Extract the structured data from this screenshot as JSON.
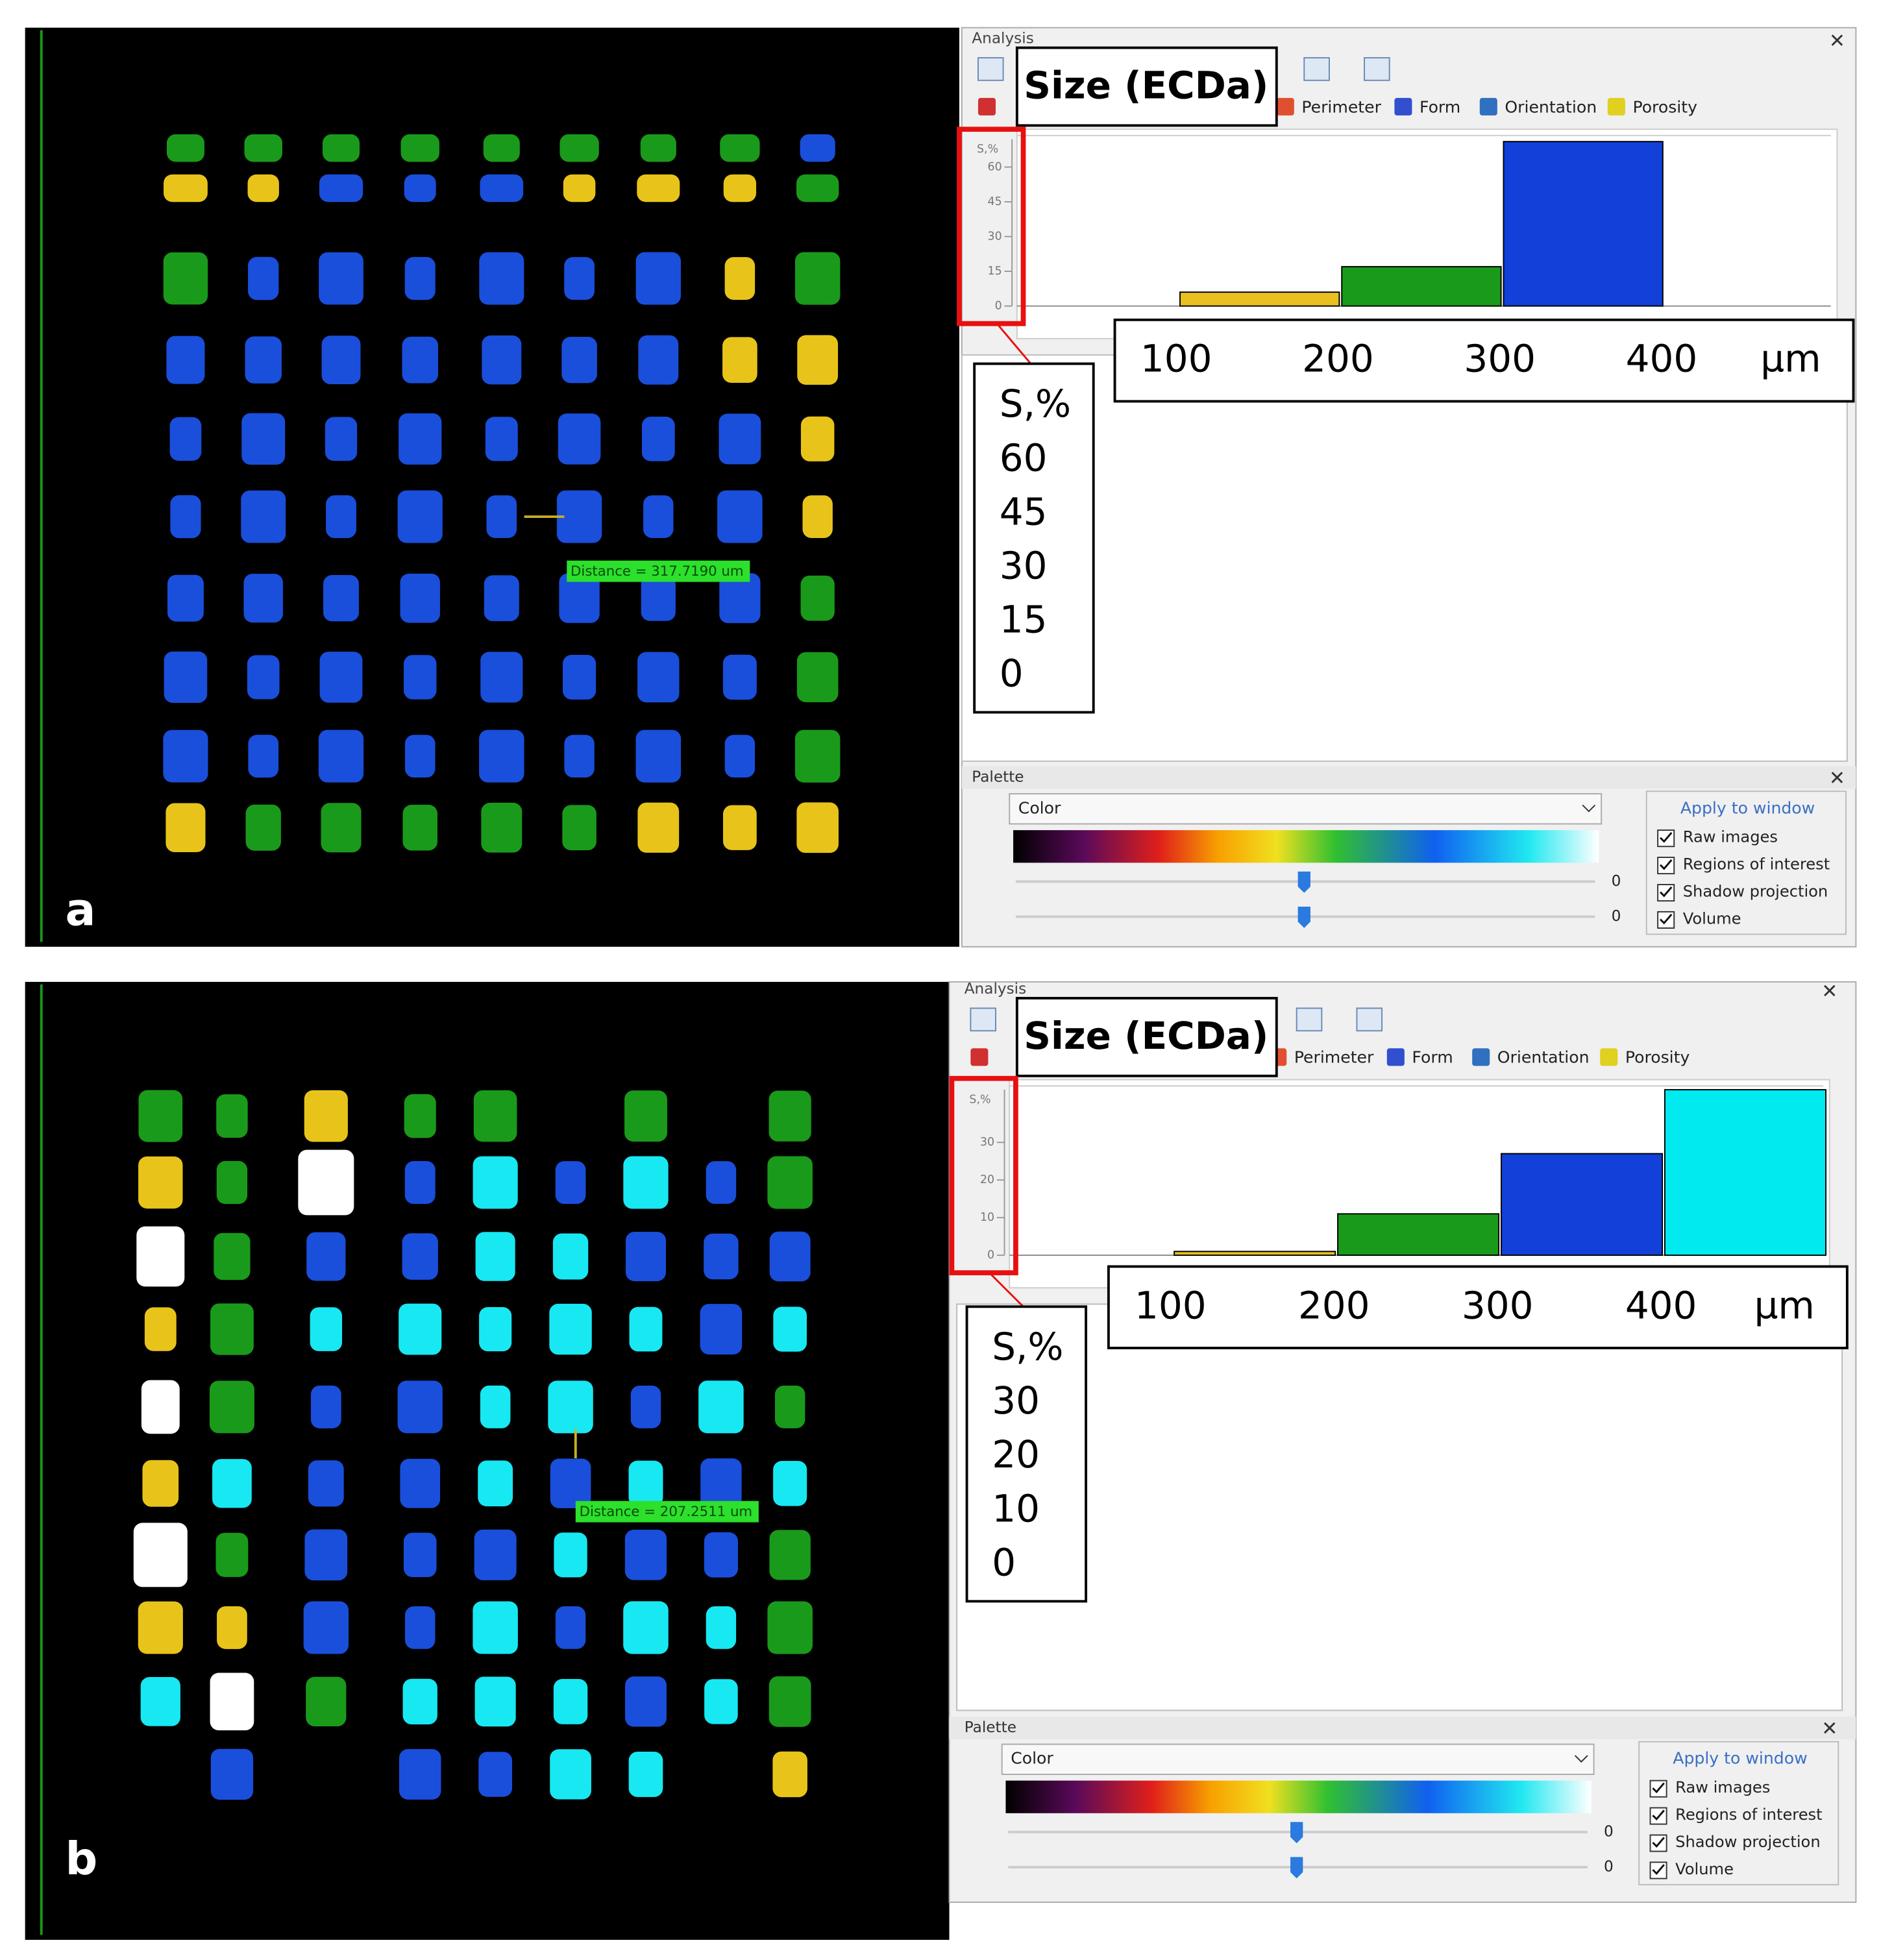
{
  "panels": [
    {
      "label": "a",
      "distance": "Distance = 317.7190 um",
      "analysis": {
        "title": "Analysis",
        "callout": "Size (ECDa)",
        "tabs": [
          "Perimeter",
          "Form",
          "Orientation",
          "Porosity"
        ],
        "histogram": {
          "type": "histogram",
          "bins": [
            100,
            200,
            300,
            400
          ],
          "values": [
            6,
            17,
            71
          ],
          "colors": [
            "#e8c020",
            "#1a9a1a",
            "#1240d8"
          ],
          "xlim": [
            0,
            500
          ],
          "ylim": [
            0,
            72
          ],
          "yticks": [
            0,
            15,
            30,
            45,
            60
          ],
          "xticks": [
            100,
            200,
            300,
            400
          ],
          "y_label": "S,%",
          "x_unit": "µm"
        }
      },
      "palette": {
        "title": "Palette",
        "mode": "Color",
        "slider_values": [
          0,
          0
        ],
        "apply_title": "Apply to window",
        "options": [
          {
            "label": "Raw images",
            "checked": true
          },
          {
            "label": "Regions of interest",
            "checked": true
          },
          {
            "label": "Shadow projection",
            "checked": true
          },
          {
            "label": "Volume",
            "checked": true
          }
        ]
      }
    },
    {
      "label": "b",
      "distance": "Distance = 207.2511 um",
      "analysis": {
        "title": "Analysis",
        "callout": "Size (ECDa)",
        "tabs": [
          "Perimeter",
          "Form",
          "Orientation",
          "Porosity"
        ],
        "histogram": {
          "type": "histogram",
          "bins": [
            100,
            200,
            300,
            400,
            500
          ],
          "values": [
            1,
            11,
            27,
            44
          ],
          "colors": [
            "#e8c020",
            "#1a9a1a",
            "#1240d8",
            "#00eaf0"
          ],
          "xlim": [
            0,
            500
          ],
          "ylim": [
            0,
            44
          ],
          "yticks": [
            0,
            10,
            20,
            30
          ],
          "xticks": [
            100,
            200,
            300,
            400
          ],
          "y_label": "S,%",
          "x_unit": "µm"
        }
      },
      "palette": {
        "title": "Palette",
        "mode": "Color",
        "slider_values": [
          0,
          0
        ],
        "apply_title": "Apply to window",
        "options": [
          {
            "label": "Raw images",
            "checked": true
          },
          {
            "label": "Regions of interest",
            "checked": true
          },
          {
            "label": "Shadow projection",
            "checked": true
          },
          {
            "label": "Volume",
            "checked": true
          }
        ]
      }
    }
  ]
}
